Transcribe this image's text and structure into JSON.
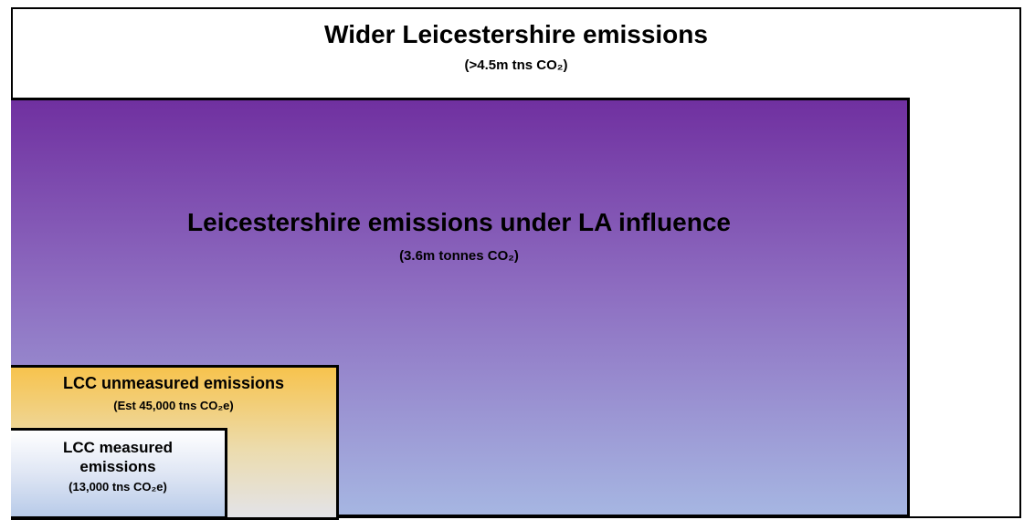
{
  "boxes": [
    {
      "title": "Wider Leicestershire emissions",
      "subtitle": "(>4.5m tns CO₂)"
    },
    {
      "title": "Leicestershire emissions under LA influence",
      "subtitle": "(3.6m tonnes CO₂)"
    },
    {
      "title": "LCC unmeasured emissions",
      "subtitle": "(Est 45,000 tns CO₂e)"
    },
    {
      "title": "LCC measured emissions",
      "subtitle": "(13,000 tns CO₂e)"
    }
  ]
}
